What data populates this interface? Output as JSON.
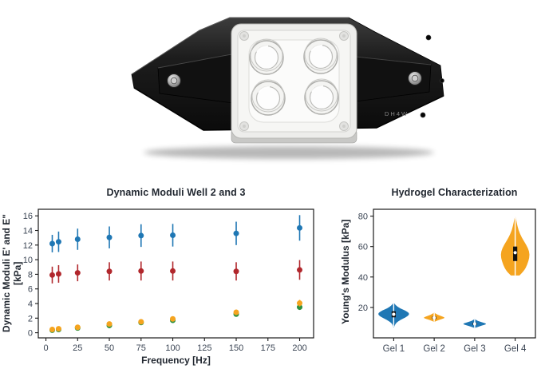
{
  "photo": {
    "description": "four-well-bioreactor-device",
    "engraving": "DH4W"
  },
  "chart_data": [
    {
      "type": "scatter",
      "title": "Dynamic Moduli Well 2 and 3",
      "xlabel": "Frequency [Hz]",
      "ylabel": "Dynamic Moduli E' and E\" [kPa]",
      "x": [
        5,
        10,
        25,
        50,
        75,
        100,
        150,
        200
      ],
      "xticks": [
        0,
        25,
        50,
        75,
        100,
        125,
        150,
        175,
        200
      ],
      "yticks": [
        0,
        2,
        4,
        6,
        8,
        10,
        12,
        14,
        16
      ],
      "xlim": [
        -6,
        211
      ],
      "ylim": [
        -0.7,
        16.9
      ],
      "grid": false,
      "legend": "none",
      "series": [
        {
          "name": "modulus-blue",
          "color": "#1f77b4",
          "y": [
            12.2,
            12.45,
            12.8,
            13.05,
            13.3,
            13.35,
            13.6,
            14.35
          ],
          "yerr": [
            1.2,
            1.4,
            1.45,
            1.5,
            1.55,
            1.55,
            1.6,
            1.75
          ]
        },
        {
          "name": "modulus-red",
          "color": "#b1272c",
          "y": [
            7.9,
            8.05,
            8.2,
            8.4,
            8.45,
            8.45,
            8.4,
            8.6
          ],
          "yerr": [
            1.15,
            1.2,
            1.15,
            1.25,
            1.3,
            1.3,
            1.25,
            1.35
          ]
        },
        {
          "name": "modulus-green",
          "color": "#2d9140",
          "y": [
            0.35,
            0.45,
            0.65,
            1.0,
            1.4,
            1.7,
            2.55,
            3.5
          ],
          "yerr": [
            0.08,
            0.08,
            0.1,
            0.15,
            0.15,
            0.2,
            0.3,
            0.35
          ]
        },
        {
          "name": "modulus-orange",
          "color": "#f5a41f",
          "y": [
            0.45,
            0.55,
            0.75,
            1.2,
            1.5,
            1.9,
            2.8,
            4.05
          ],
          "yerr": [
            0.1,
            0.1,
            0.12,
            0.18,
            0.2,
            0.25,
            0.35,
            0.45
          ]
        }
      ]
    },
    {
      "type": "violin",
      "title": "Hydrogel Characterization",
      "xlabel": "",
      "ylabel": "Young's Modulus [kPa]",
      "categories": [
        "Gel 1",
        "Gel 2",
        "Gel 3",
        "Gel 4"
      ],
      "yticks": [
        20,
        40,
        60,
        80
      ],
      "ylim": [
        0,
        84.5
      ],
      "grid": false,
      "violins": [
        {
          "name": "gel-1",
          "color": "#1f77b4",
          "median": 15.5,
          "q1": 13.5,
          "q3": 17.5,
          "whisker_min": 7.0,
          "whisker_max": 22.5,
          "width": 1.0,
          "profile": [
            [
              7.2,
              0.03
            ],
            [
              9.5,
              0.1
            ],
            [
              12,
              0.45
            ],
            [
              14,
              0.85
            ],
            [
              15.8,
              1.0
            ],
            [
              17.5,
              0.82
            ],
            [
              19.5,
              0.38
            ],
            [
              21.5,
              0.12
            ],
            [
              22.8,
              0.03
            ]
          ]
        },
        {
          "name": "gel-2",
          "color": "#f5a41f",
          "median": 13.2,
          "q1": 12.4,
          "q3": 14.0,
          "whisker_min": 10.6,
          "whisker_max": 16.4,
          "width": 0.72,
          "profile": [
            [
              10.6,
              0.05
            ],
            [
              11.8,
              0.4
            ],
            [
              13.1,
              1.0
            ],
            [
              14.2,
              0.66
            ],
            [
              15.3,
              0.25
            ],
            [
              16.4,
              0.05
            ]
          ]
        },
        {
          "name": "gel-3",
          "color": "#1f77b4",
          "median": 9.2,
          "q1": 8.5,
          "q3": 10.0,
          "whisker_min": 6.6,
          "whisker_max": 12.2,
          "width": 0.8,
          "profile": [
            [
              6.6,
              0.05
            ],
            [
              7.8,
              0.45
            ],
            [
              9.1,
              1.0
            ],
            [
              10.2,
              0.6
            ],
            [
              11.2,
              0.22
            ],
            [
              12.2,
              0.05
            ]
          ]
        },
        {
          "name": "gel-4",
          "color": "#f5a41f",
          "median": 56.0,
          "q1": 50.5,
          "q3": 60.0,
          "whisker_min": 41.0,
          "whisker_max": 79.5,
          "width": 0.9,
          "profile": [
            [
              41,
              0.3
            ],
            [
              44,
              0.62
            ],
            [
              48,
              0.84
            ],
            [
              53,
              1.0
            ],
            [
              57,
              0.98
            ],
            [
              61,
              0.78
            ],
            [
              66,
              0.45
            ],
            [
              71,
              0.22
            ],
            [
              76,
              0.1
            ],
            [
              79.5,
              0.03
            ]
          ]
        }
      ]
    }
  ],
  "style": {
    "tick_label_color": "#3b4554",
    "axis_color": "#1a1a1a",
    "title_color": "#222831"
  }
}
